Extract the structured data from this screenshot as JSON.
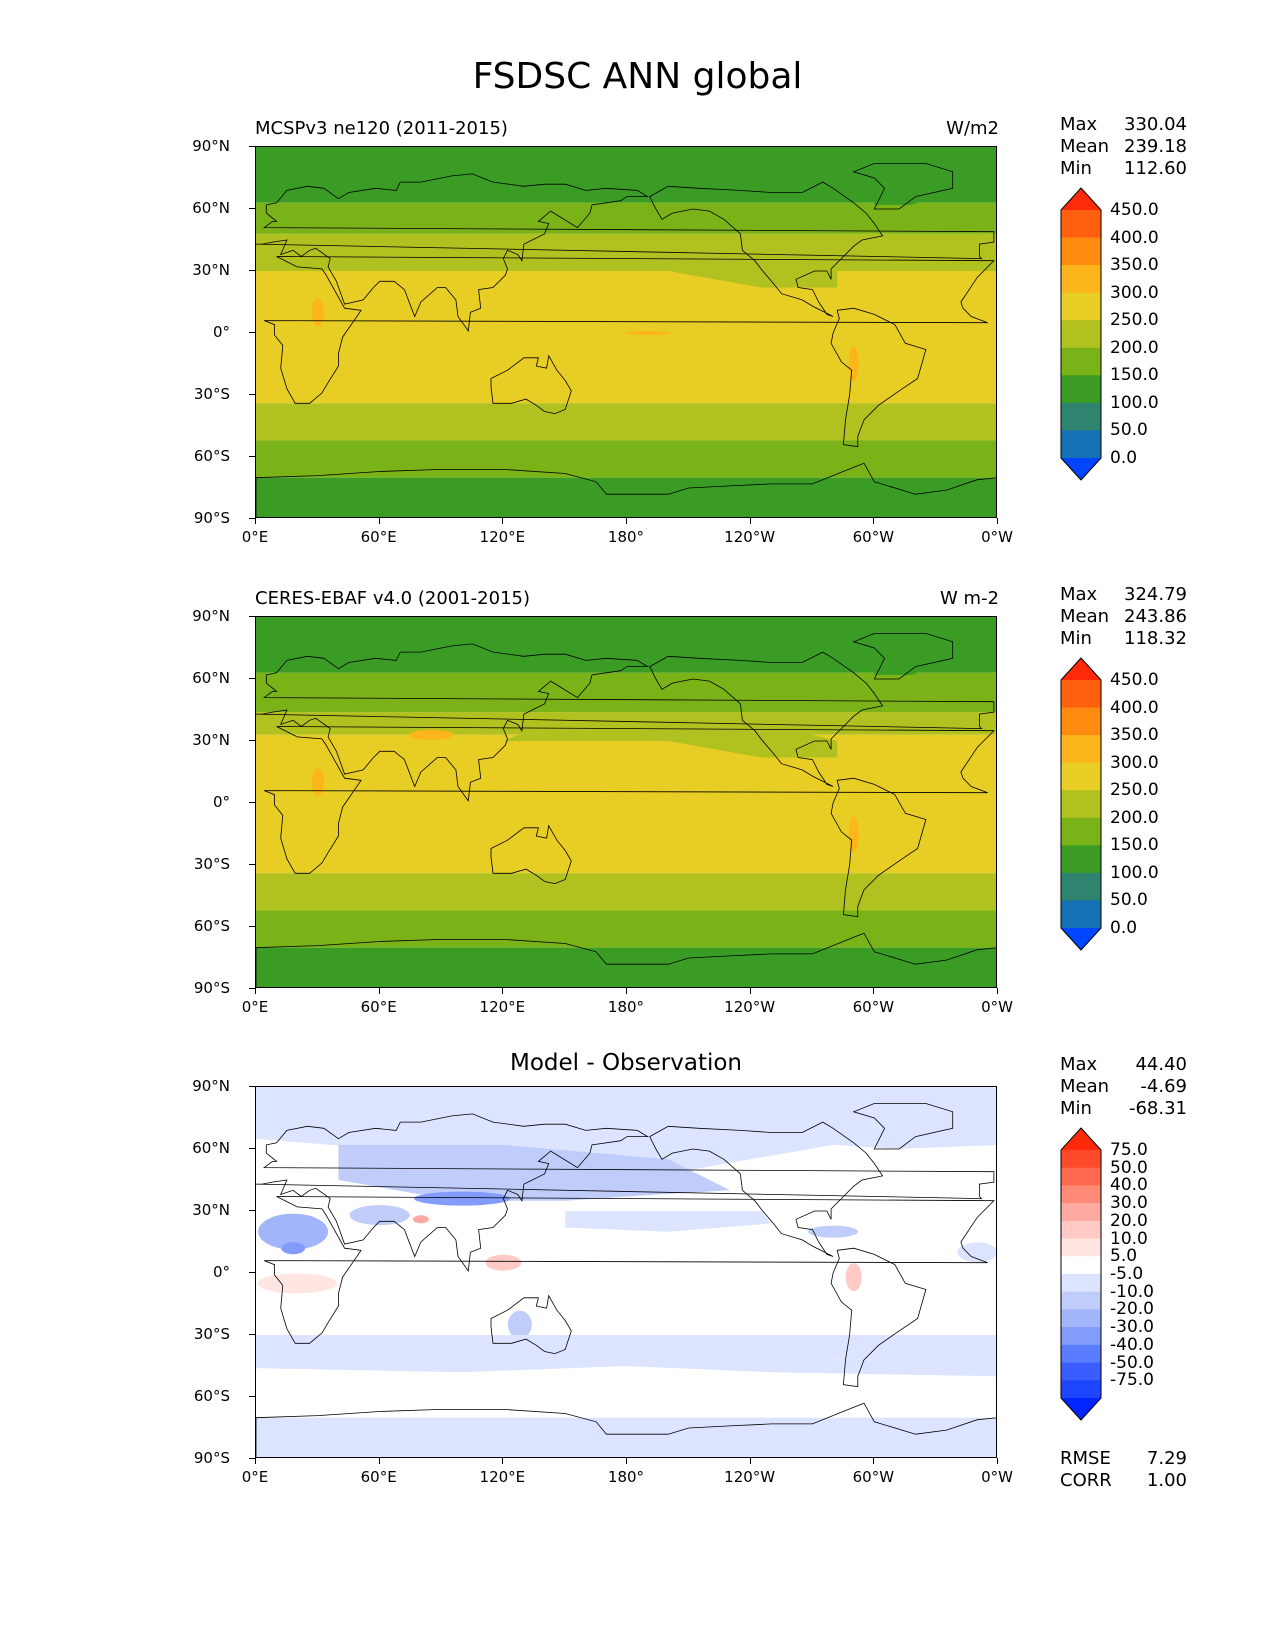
{
  "title": "FSDSC ANN global",
  "axes": {
    "lat_ticks": [
      "90°N",
      "60°N",
      "30°N",
      "0°",
      "30°S",
      "60°S",
      "90°S"
    ],
    "lon_ticks": [
      "0°E",
      "60°E",
      "120°E",
      "180°",
      "120°W",
      "60°W",
      "0°W"
    ]
  },
  "panels": [
    {
      "id": "test",
      "title": "MCSPv3 ne120 (2011-2015)",
      "units": "W/m2",
      "stats": {
        "max_label": "Max",
        "max": "330.04",
        "mean_label": "Mean",
        "mean": "239.18",
        "min_label": "Min",
        "min": "112.60"
      },
      "colorbar": {
        "labels": [
          "450.0",
          "400.0",
          "350.0",
          "300.0",
          "250.0",
          "200.0",
          "150.0",
          "100.0",
          "50.0",
          "0.0"
        ],
        "colors": [
          "#ff2a0a",
          "#ff6010",
          "#ff8c10",
          "#fcb51a",
          "#e8cd25",
          "#b1c11f",
          "#7ab317",
          "#3b9c25",
          "#2f8470",
          "#1471b5",
          "#0045ff"
        ]
      }
    },
    {
      "id": "ref",
      "title": "CERES-EBAF v4.0 (2001-2015)",
      "units": "W m-2",
      "stats": {
        "max_label": "Max",
        "max": "324.79",
        "mean_label": "Mean",
        "mean": "243.86",
        "min_label": "Min",
        "min": "118.32"
      },
      "colorbar": {
        "labels": [
          "450.0",
          "400.0",
          "350.0",
          "300.0",
          "250.0",
          "200.0",
          "150.0",
          "100.0",
          "50.0",
          "0.0"
        ],
        "colors": [
          "#ff2a0a",
          "#ff6010",
          "#ff8c10",
          "#fcb51a",
          "#e8cd25",
          "#b1c11f",
          "#7ab317",
          "#3b9c25",
          "#2f8470",
          "#1471b5",
          "#0045ff"
        ]
      }
    },
    {
      "id": "diff",
      "title": "Model - Observation",
      "units": "",
      "stats": {
        "max_label": "Max",
        "max": "44.40",
        "mean_label": "Mean",
        "mean": "-4.69",
        "min_label": "Min",
        "min": "-68.31"
      },
      "colorbar": {
        "labels": [
          "75.0",
          "50.0",
          "40.0",
          "30.0",
          "20.0",
          "10.0",
          "5.0",
          "-5.0",
          "-10.0",
          "-20.0",
          "-30.0",
          "-40.0",
          "-50.0",
          "-75.0"
        ],
        "colors": [
          "#ff2a0a",
          "#ff4a2a",
          "#ff6a4f",
          "#ff8a75",
          "#ffaaa0",
          "#ffcac5",
          "#ffe6e3",
          "#ffffff",
          "#dde4ff",
          "#c0cdfb",
          "#a2b5fb",
          "#839bfb",
          "#5a7cff",
          "#3a5dff",
          "#1e45ff",
          "#0025ff"
        ]
      },
      "metrics": {
        "rmse_label": "RMSE",
        "rmse": "7.29",
        "corr_label": "CORR",
        "corr": "1.00"
      }
    }
  ]
}
